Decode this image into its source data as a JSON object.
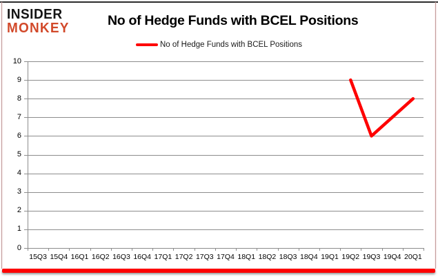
{
  "logo": {
    "line1": "INSIDER",
    "line2": "MONKEY",
    "monkey_color": "#d2492a"
  },
  "title": "No of Hedge Funds with BCEL Positions",
  "legend": {
    "label": "No of Hedge Funds with BCEL Positions",
    "color": "#fe0000"
  },
  "chart_data": {
    "type": "line",
    "title": "No of Hedge Funds with BCEL Positions",
    "categories": [
      "15Q3",
      "15Q4",
      "16Q1",
      "16Q2",
      "16Q3",
      "16Q4",
      "17Q1",
      "17Q2",
      "17Q3",
      "17Q4",
      "18Q1",
      "18Q2",
      "18Q3",
      "18Q4",
      "19Q1",
      "19Q2",
      "19Q3",
      "19Q4",
      "20Q1"
    ],
    "series": [
      {
        "name": "No of Hedge Funds with BCEL Positions",
        "color": "#fe0000",
        "values": [
          null,
          null,
          null,
          null,
          null,
          null,
          null,
          null,
          null,
          null,
          null,
          null,
          null,
          null,
          null,
          9,
          6,
          7,
          8
        ]
      }
    ],
    "xlabel": "",
    "ylabel": "",
    "ylim": [
      0,
      10
    ],
    "ytick_step": 1,
    "grid": true,
    "legend_position": "top"
  },
  "colors": {
    "grid": "#8c8c8c",
    "axis": "#8c8c8c",
    "text": "#000000",
    "bottom_bar": "#fe0000",
    "frame_top": "#2b2b2b",
    "frame_side": "#c29a9a"
  }
}
